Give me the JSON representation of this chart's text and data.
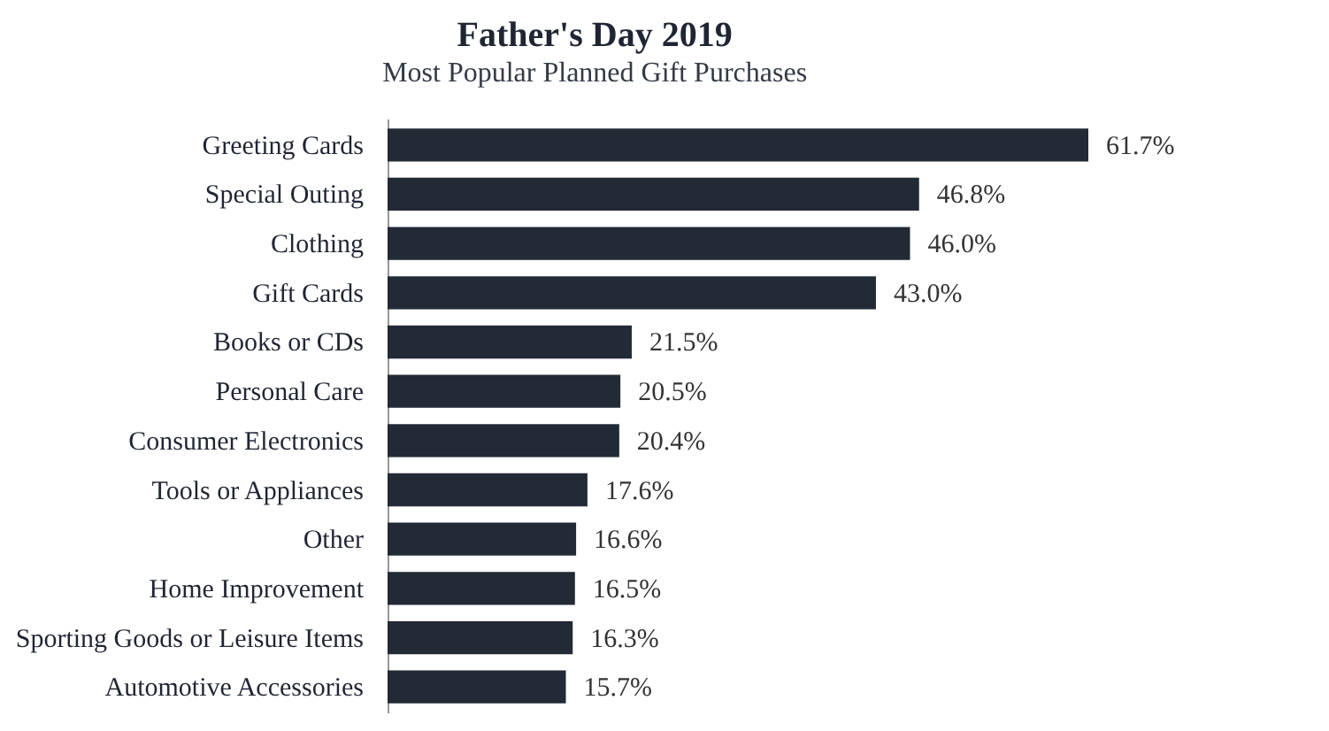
{
  "chart_data": {
    "type": "bar",
    "orientation": "horizontal",
    "title": "Father's Day 2019",
    "subtitle": "Most Popular Planned Gift Purchases",
    "categories": [
      "Greeting Cards",
      "Special Outing",
      "Clothing",
      "Gift Cards",
      "Books or CDs",
      "Personal Care",
      "Consumer Electronics",
      "Tools or Appliances",
      "Other",
      "Home Improvement",
      "Sporting Goods or Leisure Items",
      "Automotive Accessories"
    ],
    "values": [
      61.7,
      46.8,
      46.0,
      43.0,
      21.5,
      20.5,
      20.4,
      17.6,
      16.6,
      16.5,
      16.3,
      15.7
    ],
    "value_labels": [
      "61.7%",
      "46.8%",
      "46.0%",
      "43.0%",
      "21.5%",
      "20.5%",
      "20.4%",
      "17.6%",
      "16.6%",
      "16.5%",
      "16.3%",
      "15.7%"
    ],
    "color": "#222a36"
  }
}
